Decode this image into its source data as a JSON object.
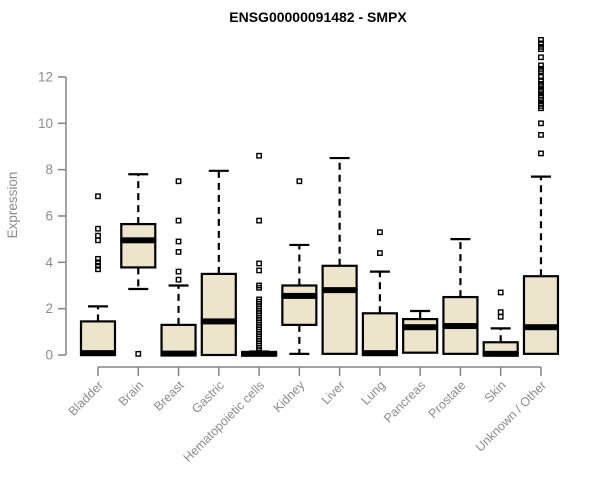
{
  "chart_data": {
    "type": "boxplot",
    "title": "ENSG00000091482 - SMPX",
    "ylabel": "Expression",
    "xlabel": "",
    "ylim": [
      0,
      12
    ],
    "yticks": [
      0,
      2,
      4,
      6,
      8,
      10,
      12
    ],
    "grid": false,
    "legend": false,
    "colors": {
      "box_fill": "#ece5cb",
      "box_stroke": "#000000",
      "median": "#000000",
      "outlier_stroke": "#000000",
      "axis_line": "#858585",
      "axis_text": "#8c8c8c",
      "title_text": "#000000"
    },
    "categories": [
      "Bladder",
      "Brain",
      "Breast",
      "Gastric",
      "Hematopoietic cells",
      "Kidney",
      "Liver",
      "Lung",
      "Pancreas",
      "Prostate",
      "Skin",
      "Unknown / Other"
    ],
    "boxes": [
      {
        "label": "Bladder",
        "whisker_low": 0,
        "q1": 0,
        "median": 0.08,
        "q3": 1.45,
        "whisker_high": 2.1,
        "outliers": [
          3.7,
          3.85,
          4.0,
          4.15,
          4.95,
          5.15,
          5.45,
          6.85
        ]
      },
      {
        "label": "Brain",
        "whisker_low": 2.85,
        "q1": 3.78,
        "median": 4.95,
        "q3": 5.65,
        "whisker_high": 7.8,
        "outliers": [
          0.05
        ]
      },
      {
        "label": "Breast",
        "whisker_low": 0,
        "q1": 0,
        "median": 0.06,
        "q3": 1.3,
        "whisker_high": 3.0,
        "outliers": [
          3.25,
          3.6,
          4.45,
          4.9,
          5.8,
          7.5
        ]
      },
      {
        "label": "Gastric",
        "whisker_low": 0,
        "q1": 0,
        "median": 1.45,
        "q3": 3.5,
        "whisker_high": 7.95,
        "outliers": []
      },
      {
        "label": "Hematopoietic cells",
        "whisker_low": 0,
        "q1": 0,
        "median": 0.05,
        "q3": 0.1,
        "whisker_high": 0.15,
        "outliers": [
          0.2,
          0.3,
          0.4,
          0.5,
          0.6,
          0.7,
          0.8,
          0.9,
          1.0,
          1.1,
          1.2,
          1.3,
          1.4,
          1.5,
          1.6,
          1.7,
          1.8,
          1.9,
          2.0,
          2.1,
          2.2,
          2.3,
          2.4,
          2.9,
          3.0,
          3.65,
          3.95,
          5.8,
          8.6
        ]
      },
      {
        "label": "Kidney",
        "whisker_low": 0.05,
        "q1": 1.3,
        "median": 2.55,
        "q3": 3.0,
        "whisker_high": 4.75,
        "outliers": [
          7.5
        ]
      },
      {
        "label": "Liver",
        "whisker_low": 0.05,
        "q1": 0.05,
        "median": 2.8,
        "q3": 3.85,
        "whisker_high": 8.5,
        "outliers": []
      },
      {
        "label": "Lung",
        "whisker_low": 0,
        "q1": 0,
        "median": 0.08,
        "q3": 1.8,
        "whisker_high": 3.6,
        "outliers": [
          4.4,
          5.3
        ]
      },
      {
        "label": "Pancreas",
        "whisker_low": 0.1,
        "q1": 0.1,
        "median": 1.2,
        "q3": 1.55,
        "whisker_high": 1.9,
        "outliers": []
      },
      {
        "label": "Prostate",
        "whisker_low": 0.05,
        "q1": 0.05,
        "median": 1.25,
        "q3": 2.5,
        "whisker_high": 5.0,
        "outliers": []
      },
      {
        "label": "Skin",
        "whisker_low": 0,
        "q1": 0,
        "median": 0.05,
        "q3": 0.55,
        "whisker_high": 1.15,
        "outliers": [
          1.65,
          1.85,
          2.7
        ]
      },
      {
        "label": "Unknown / Other",
        "whisker_low": 0.05,
        "q1": 0.05,
        "median": 1.2,
        "q3": 3.4,
        "whisker_high": 7.7,
        "outliers": [
          8.7,
          9.5,
          10.0,
          10.65,
          10.75,
          10.85,
          11.0,
          11.1,
          11.2,
          11.35,
          11.45,
          11.6,
          11.7,
          11.85,
          12.0,
          12.25,
          12.35,
          12.5,
          12.85,
          13.2,
          13.3,
          13.45,
          13.6
        ]
      }
    ]
  }
}
